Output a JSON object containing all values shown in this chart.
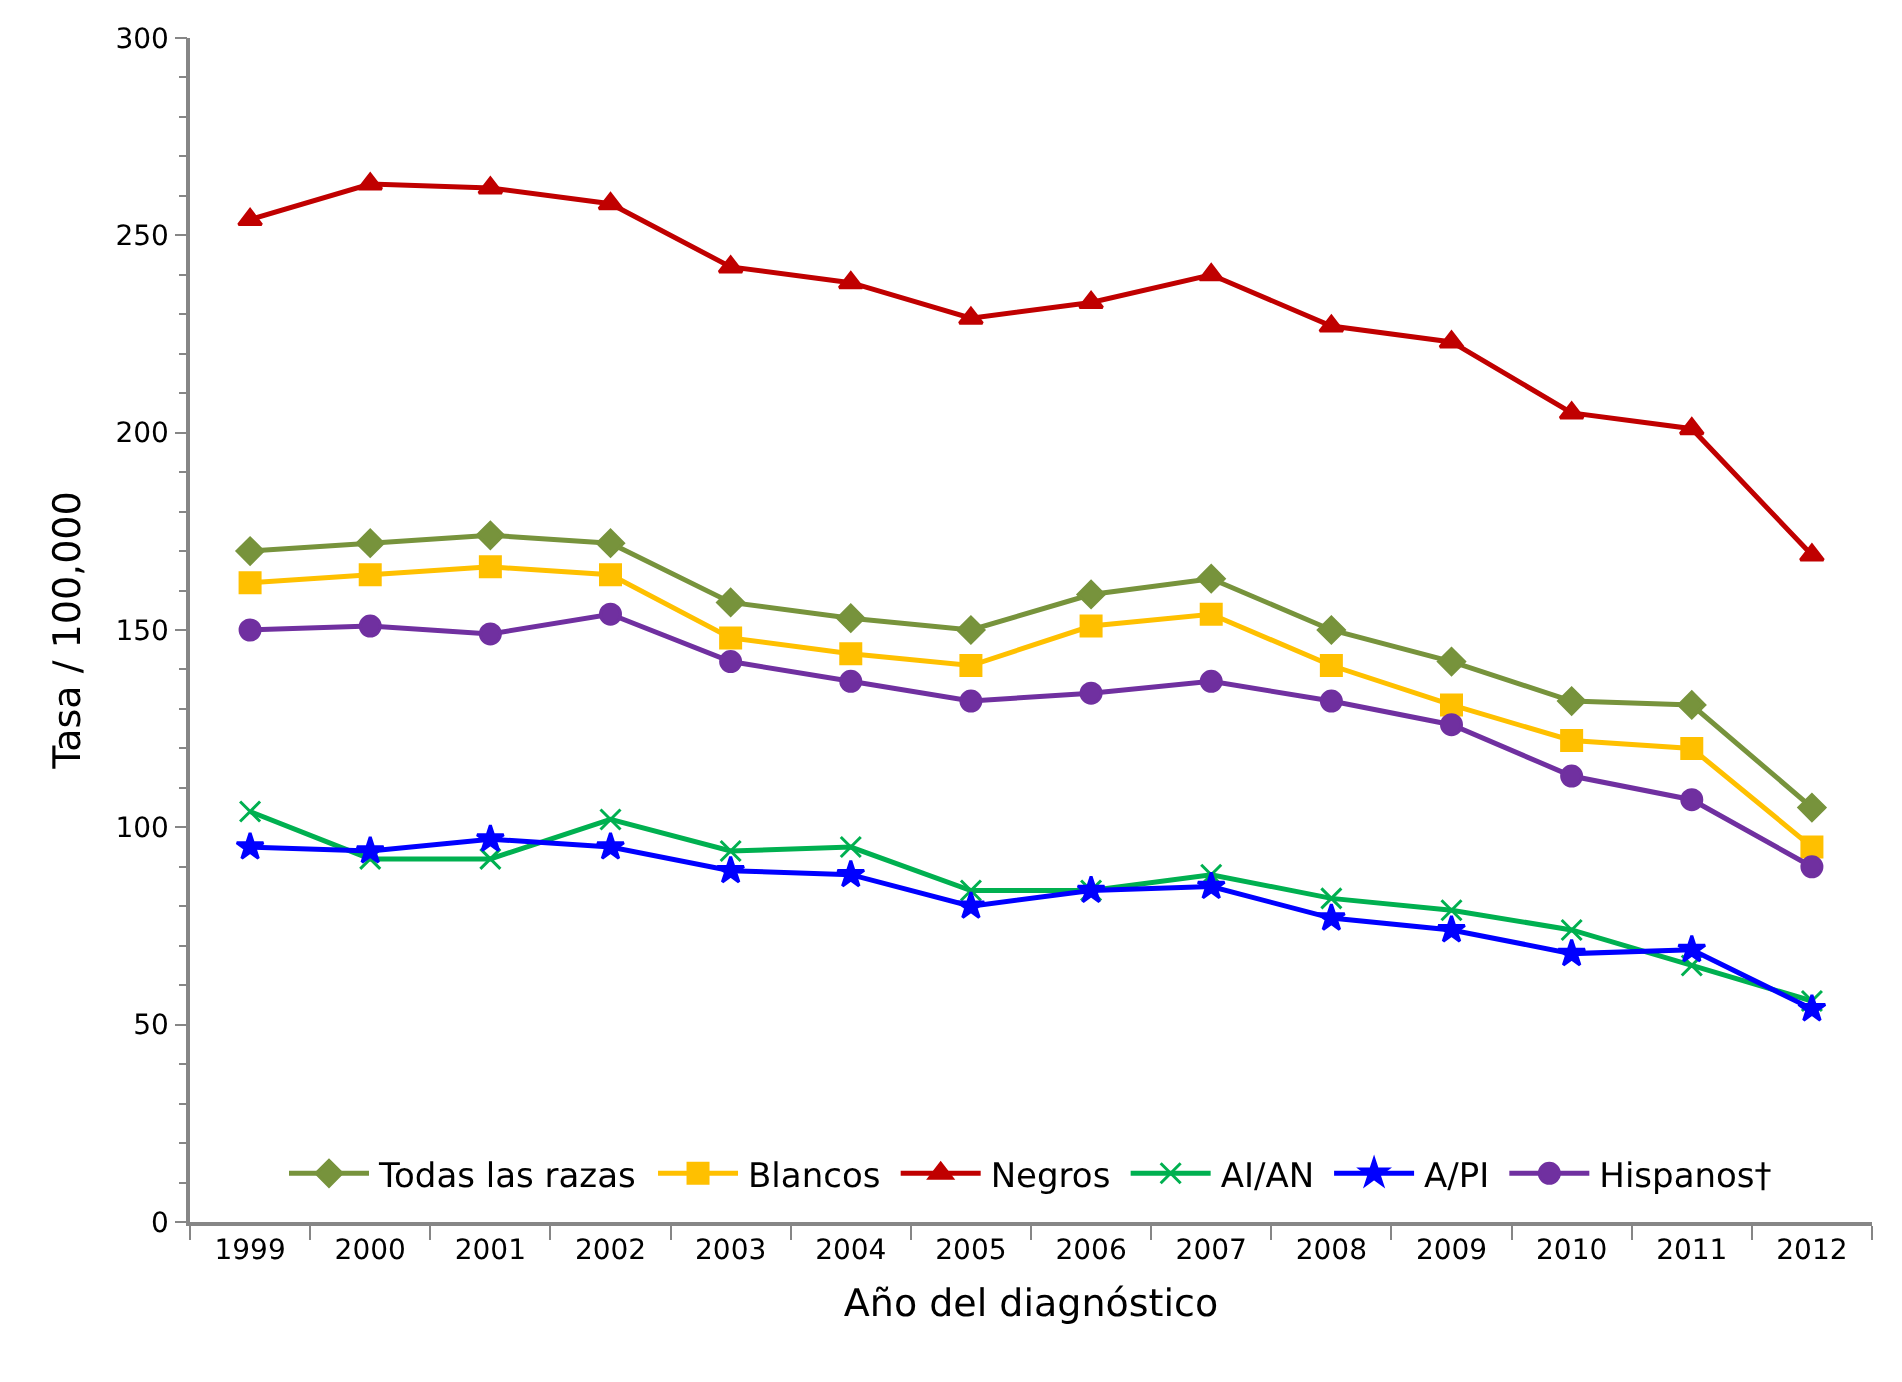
{
  "chart_data": {
    "type": "line",
    "xlabel": "Año del diagnóstico",
    "ylabel": "Tasa / 100,000",
    "categories": [
      "1999",
      "2000",
      "2001",
      "2002",
      "2003",
      "2004",
      "2005",
      "2006",
      "2007",
      "2008",
      "2009",
      "2010",
      "2011",
      "2012"
    ],
    "series": [
      {
        "name": "Todas las razas",
        "color": "#77933c",
        "marker": "diamond",
        "values": [
          170,
          172,
          174,
          172,
          157,
          153,
          150,
          159,
          163,
          150,
          142,
          132,
          131,
          105
        ]
      },
      {
        "name": "Blancos",
        "color": "#ffc000",
        "marker": "square",
        "values": [
          162,
          164,
          166,
          164,
          148,
          144,
          141,
          151,
          154,
          141,
          131,
          122,
          120,
          95
        ]
      },
      {
        "name": "Negros",
        "color": "#c00000",
        "marker": "triangle",
        "values": [
          254,
          263,
          262,
          258,
          242,
          238,
          229,
          233,
          240,
          227,
          223,
          205,
          201,
          169
        ]
      },
      {
        "name": "AI/AN",
        "color": "#00b050",
        "marker": "cross",
        "values": [
          104,
          92,
          92,
          102,
          94,
          95,
          84,
          84,
          88,
          82,
          79,
          74,
          65,
          56
        ]
      },
      {
        "name": "A/PI",
        "color": "#0000ff",
        "marker": "star",
        "values": [
          95,
          94,
          97,
          95,
          89,
          88,
          80,
          84,
          85,
          77,
          74,
          68,
          69,
          54
        ]
      },
      {
        "name": "Hispanos†",
        "color": "#7030a0",
        "marker": "circle",
        "values": [
          150,
          151,
          149,
          154,
          142,
          137,
          132,
          134,
          137,
          132,
          126,
          113,
          107,
          90
        ]
      }
    ],
    "ylim": [
      0,
      300
    ],
    "yticks": [
      0,
      50,
      100,
      150,
      200,
      250,
      300
    ],
    "legend": "bottom",
    "line_style": "solid"
  }
}
